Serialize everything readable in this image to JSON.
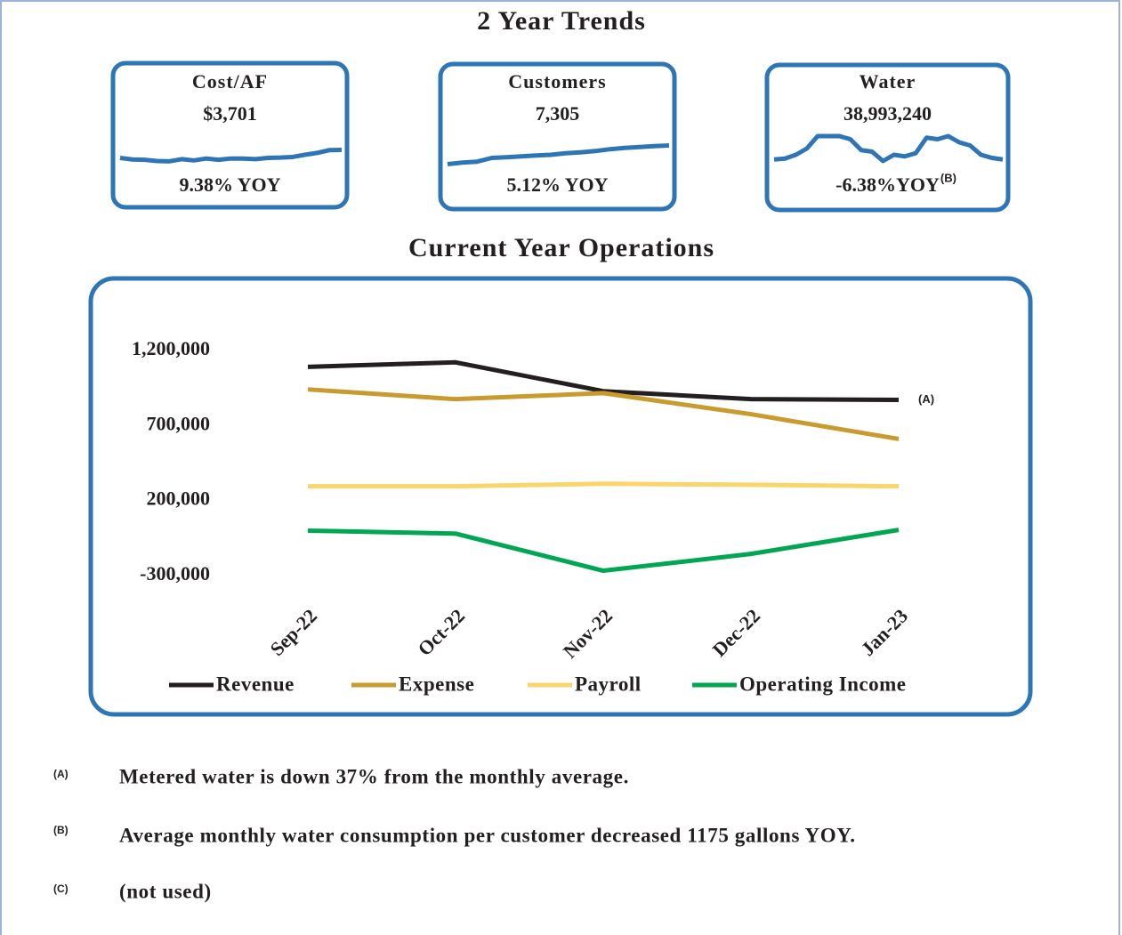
{
  "title": "2 Year Trends",
  "chart_data": [
    {
      "type": "sparkline",
      "title": "Cost/AF",
      "value": "$3,701",
      "subtitle": "9.38% YOY",
      "color": "#2e75b6",
      "values": [
        30,
        25,
        24,
        20,
        19,
        26,
        22,
        28,
        24,
        28,
        28,
        26,
        30,
        31,
        33,
        40,
        46,
        55,
        56
      ],
      "ylim": [
        0,
        100
      ]
    },
    {
      "type": "sparkline",
      "title": "Customers",
      "value": "7,305",
      "subtitle": "5.12% YOY",
      "color": "#2e75b6",
      "values": [
        10,
        15,
        18,
        30,
        32,
        35,
        38,
        40,
        45,
        48,
        52,
        58,
        62,
        65,
        68,
        70
      ],
      "ylim": [
        0,
        100
      ]
    },
    {
      "type": "sparkline",
      "title": "Water",
      "value": "38,993,240",
      "subtitle": "-6.38%YOY",
      "note_ref": "(B)",
      "color": "#2e75b6",
      "values": [
        25,
        28,
        40,
        60,
        100,
        100,
        100,
        90,
        55,
        50,
        20,
        40,
        35,
        45,
        95,
        90,
        100,
        80,
        70,
        40,
        30,
        25
      ],
      "ylim": [
        0,
        100
      ]
    },
    {
      "type": "line",
      "title": "Current Year  Operations",
      "categories": [
        "Sep-22",
        "Oct-22",
        "Nov-22",
        "Dec-22",
        "Jan-23"
      ],
      "series": [
        {
          "name": "Revenue",
          "color": "#231f20",
          "values": [
            1090000,
            1120000,
            928000,
            875000,
            870000
          ]
        },
        {
          "name": "Expense",
          "color": "#c99a2e",
          "values": [
            940000,
            875000,
            915000,
            775000,
            610000
          ]
        },
        {
          "name": "Payroll",
          "color": "#fad56b",
          "values": [
            295000,
            295000,
            312000,
            305000,
            295000
          ]
        },
        {
          "name": "Operating Income",
          "color": "#00a651",
          "values": [
            0,
            -20000,
            -267000,
            -155000,
            5000
          ]
        }
      ],
      "ylim": [
        -400000,
        1400000
      ],
      "yticks": [
        {
          "value": -300000,
          "label": "-300,000"
        },
        {
          "value": 200000,
          "label": "200,000"
        },
        {
          "value": 700000,
          "label": "700,000"
        },
        {
          "value": 1200000,
          "label": "1,200,000"
        }
      ],
      "grid": false,
      "legend": "bottom",
      "annotation": "(A)"
    }
  ],
  "notes": [
    {
      "marker": "(A)",
      "text": "Metered water is down 37% from the monthly average."
    },
    {
      "marker": "(B)",
      "text": "Average monthly water consumption per customer decreased 1175 gallons YOY."
    },
    {
      "marker": "(C)",
      "text": "(not used)"
    }
  ]
}
